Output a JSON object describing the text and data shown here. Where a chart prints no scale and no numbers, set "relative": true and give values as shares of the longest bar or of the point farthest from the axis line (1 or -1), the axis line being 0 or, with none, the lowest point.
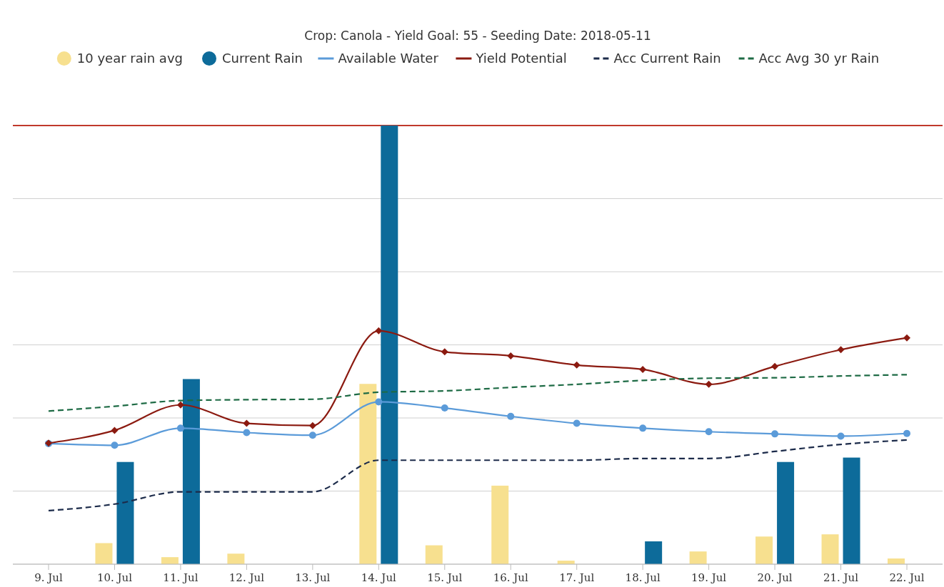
{
  "chart_data": {
    "type": "bar",
    "title": "Crop: Canola - Yield Goal: 55 - Seeding Date: 2018-05-11",
    "relative": true,
    "grid": "y",
    "legend": "top",
    "categories": [
      "9. Jul",
      "10. Jul",
      "11. Jul",
      "12. Jul",
      "13. Jul",
      "14. Jul",
      "15. Jul",
      "16. Jul",
      "17. Jul",
      "18. Jul",
      "19. Jul",
      "20. Jul",
      "21. Jul",
      "22. Jul"
    ],
    "ref_lines": [
      {
        "axis": "y",
        "value": 1,
        "color": "#c0392b"
      }
    ],
    "series": [
      {
        "name": "10 year rain avg",
        "color": "#f7e08f",
        "values": [
          null,
          0.048,
          0.016,
          0.024,
          null,
          0.411,
          0.043,
          0.179,
          0.008,
          null,
          0.029,
          0.063,
          0.068,
          0.013
        ]
      },
      {
        "name": "Current Rain",
        "color": "#0d6b9a",
        "values": [
          null,
          0.233,
          0.422,
          null,
          null,
          1,
          null,
          null,
          null,
          0.052,
          null,
          0.233,
          0.243,
          null
        ]
      },
      {
        "name": "Available Water",
        "type": "line",
        "color": "#5b9bd9",
        "marker": "circle",
        "line_style": "solid",
        "values": [
          0.275,
          0.271,
          0.31,
          0.3,
          0.294,
          0.37,
          0.356,
          0.337,
          0.321,
          0.31,
          0.302,
          0.297,
          0.292,
          0.298
        ]
      },
      {
        "name": "Yield Potential",
        "type": "line",
        "color": "#8b1a10",
        "marker": "diamond",
        "line_style": "solid",
        "values": [
          0.276,
          0.305,
          0.363,
          0.321,
          0.316,
          0.532,
          0.484,
          0.475,
          0.454,
          0.444,
          0.41,
          0.451,
          0.489,
          0.516
        ]
      },
      {
        "name": "Acc Current Rain",
        "type": "line",
        "color": "#1c2b4a",
        "marker": "none",
        "line_style": "dashed",
        "values": [
          0.122,
          0.137,
          0.165,
          0.165,
          0.165,
          0.237,
          0.237,
          0.237,
          0.237,
          0.241,
          0.241,
          0.257,
          0.273,
          0.283
        ]
      },
      {
        "name": "Acc Avg 30 yr Rain",
        "type": "line",
        "color": "#1e6b45",
        "marker": "none",
        "line_style": "dashed",
        "values": [
          0.349,
          0.36,
          0.373,
          0.375,
          0.376,
          0.392,
          0.395,
          0.403,
          0.41,
          0.419,
          0.424,
          0.425,
          0.429,
          0.432
        ]
      }
    ]
  }
}
